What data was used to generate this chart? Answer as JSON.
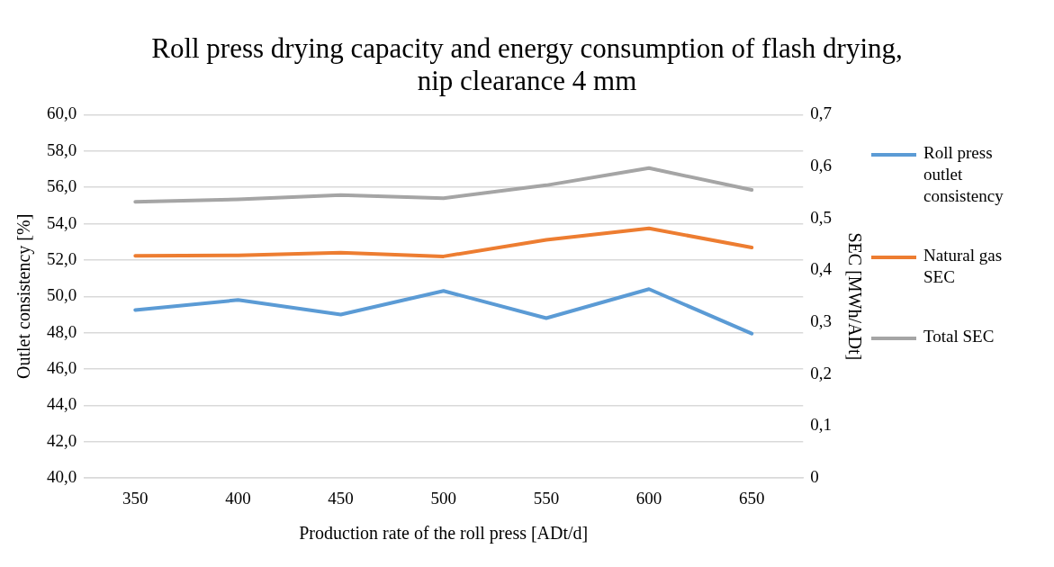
{
  "chart_data": {
    "type": "line",
    "title": "Roll press drying capacity and energy consumption of flash drying, nip clearance 4 mm",
    "xlabel": "Production rate of the roll press [ADt/d]",
    "ylabel": "Outlet consistency [%]",
    "y2label": "SEC [MWh/ADt]",
    "categories": [
      "350",
      "400",
      "450",
      "500",
      "550",
      "600",
      "650"
    ],
    "series": [
      {
        "name": "Roll press outlet consistency",
        "color": "#5b9bd5",
        "values": [
          49.25,
          49.8,
          49.0,
          50.3,
          48.8,
          50.4,
          47.95
        ]
      },
      {
        "name": "Natural gas SEC",
        "color": "#ed7d31",
        "axis": "y2",
        "values": [
          0.428,
          0.429,
          0.434,
          0.427,
          0.459,
          0.481,
          0.444
        ]
      },
      {
        "name": "Total SEC",
        "color": "#a5a5a5",
        "axis": "y2",
        "values": [
          0.532,
          0.537,
          0.545,
          0.539,
          0.564,
          0.597,
          0.555
        ]
      }
    ],
    "ylim": [
      40,
      60
    ],
    "yticks": [
      {
        "value": 40,
        "label": "40,0"
      },
      {
        "value": 42,
        "label": "42,0"
      },
      {
        "value": 44,
        "label": "44,0"
      },
      {
        "value": 46,
        "label": "46,0"
      },
      {
        "value": 48,
        "label": "48,0"
      },
      {
        "value": 50,
        "label": "50,0"
      },
      {
        "value": 52,
        "label": "52,0"
      },
      {
        "value": 54,
        "label": "54,0"
      },
      {
        "value": 56,
        "label": "56,0"
      },
      {
        "value": 58,
        "label": "58,0"
      },
      {
        "value": 60,
        "label": "60,0"
      }
    ],
    "y2lim": [
      0,
      0.7
    ],
    "y2ticks": [
      0,
      {
        "value": 0.1,
        "label": "0,1"
      },
      {
        "value": 0.2,
        "label": "0,2"
      },
      {
        "value": 0.3,
        "label": "0,3"
      },
      {
        "value": 0.4,
        "label": "0,4"
      },
      {
        "value": 0.5,
        "label": "0,5"
      },
      {
        "value": 0.6,
        "label": "0,6"
      },
      {
        "value": 0.7,
        "label": "0,7"
      }
    ],
    "grid": "y",
    "legend": "right",
    "marker": "none",
    "line_style": "solid"
  }
}
